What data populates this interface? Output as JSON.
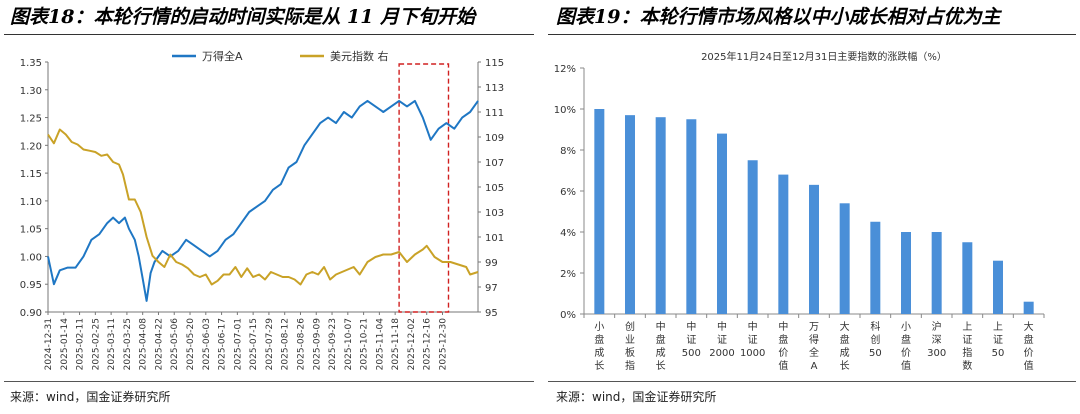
{
  "left": {
    "title": "图表18：本轮行情的启动时间实际是从 11 月下旬开始",
    "source": "来源：wind，国金证券研究所",
    "chart_data": {
      "type": "line",
      "series": [
        {
          "name": "万得全A",
          "axis": "left",
          "color": "#1f77c4",
          "points": [
            [
              0,
              1.0
            ],
            [
              3,
              0.95
            ],
            [
              6,
              0.975
            ],
            [
              10,
              0.98
            ],
            [
              14,
              0.98
            ],
            [
              18,
              1.0
            ],
            [
              22,
              1.03
            ],
            [
              26,
              1.04
            ],
            [
              30,
              1.06
            ],
            [
              33,
              1.07
            ],
            [
              36,
              1.06
            ],
            [
              39,
              1.07
            ],
            [
              41,
              1.05
            ],
            [
              44,
              1.03
            ],
            [
              46,
              1.0
            ],
            [
              48,
              0.96
            ],
            [
              50,
              0.92
            ],
            [
              52,
              0.97
            ],
            [
              54,
              0.99
            ],
            [
              58,
              1.01
            ],
            [
              62,
              1.0
            ],
            [
              66,
              1.01
            ],
            [
              70,
              1.03
            ],
            [
              74,
              1.02
            ],
            [
              78,
              1.01
            ],
            [
              82,
              1.0
            ],
            [
              86,
              1.01
            ],
            [
              90,
              1.03
            ],
            [
              94,
              1.04
            ],
            [
              98,
              1.06
            ],
            [
              102,
              1.08
            ],
            [
              106,
              1.09
            ],
            [
              110,
              1.1
            ],
            [
              114,
              1.12
            ],
            [
              118,
              1.13
            ],
            [
              122,
              1.16
            ],
            [
              126,
              1.17
            ],
            [
              130,
              1.2
            ],
            [
              134,
              1.22
            ],
            [
              138,
              1.24
            ],
            [
              142,
              1.25
            ],
            [
              146,
              1.24
            ],
            [
              150,
              1.26
            ],
            [
              154,
              1.25
            ],
            [
              158,
              1.27
            ],
            [
              162,
              1.28
            ],
            [
              166,
              1.27
            ],
            [
              170,
              1.26
            ],
            [
              174,
              1.27
            ],
            [
              178,
              1.28
            ],
            [
              182,
              1.27
            ],
            [
              186,
              1.28
            ],
            [
              190,
              1.25
            ],
            [
              194,
              1.21
            ],
            [
              198,
              1.23
            ],
            [
              202,
              1.24
            ],
            [
              206,
              1.23
            ],
            [
              210,
              1.25
            ],
            [
              214,
              1.26
            ],
            [
              218,
              1.28
            ]
          ]
        },
        {
          "name": "美元指数 右",
          "axis": "right",
          "color": "#c9a227",
          "points": [
            [
              0,
              109.2
            ],
            [
              3,
              108.5
            ],
            [
              6,
              109.6
            ],
            [
              9,
              109.2
            ],
            [
              12,
              108.6
            ],
            [
              15,
              108.4
            ],
            [
              18,
              108.0
            ],
            [
              21,
              107.9
            ],
            [
              24,
              107.8
            ],
            [
              27,
              107.5
            ],
            [
              30,
              107.6
            ],
            [
              33,
              107.0
            ],
            [
              36,
              106.8
            ],
            [
              38,
              106.0
            ],
            [
              41,
              104.0
            ],
            [
              44,
              104.0
            ],
            [
              47,
              103.0
            ],
            [
              50,
              101.0
            ],
            [
              53,
              99.5
            ],
            [
              56,
              99.0
            ],
            [
              59,
              98.6
            ],
            [
              62,
              99.6
            ],
            [
              65,
              99.0
            ],
            [
              68,
              98.8
            ],
            [
              71,
              98.5
            ],
            [
              74,
              98.0
            ],
            [
              77,
              97.8
            ],
            [
              80,
              98.0
            ],
            [
              83,
              97.2
            ],
            [
              86,
              97.5
            ],
            [
              89,
              98.0
            ],
            [
              92,
              98.0
            ],
            [
              95,
              98.6
            ],
            [
              98,
              97.8
            ],
            [
              101,
              98.5
            ],
            [
              104,
              97.8
            ],
            [
              107,
              98.0
            ],
            [
              110,
              97.6
            ],
            [
              113,
              98.2
            ],
            [
              116,
              98.0
            ],
            [
              119,
              97.8
            ],
            [
              122,
              97.8
            ],
            [
              125,
              97.6
            ],
            [
              128,
              97.2
            ],
            [
              131,
              98.0
            ],
            [
              134,
              98.2
            ],
            [
              137,
              98.0
            ],
            [
              140,
              98.6
            ],
            [
              143,
              97.6
            ],
            [
              146,
              98.0
            ],
            [
              149,
              98.2
            ],
            [
              152,
              98.4
            ],
            [
              155,
              98.6
            ],
            [
              158,
              98.0
            ],
            [
              162,
              99.0
            ],
            [
              166,
              99.4
            ],
            [
              170,
              99.6
            ],
            [
              174,
              99.6
            ],
            [
              178,
              99.8
            ],
            [
              182,
              99.0
            ],
            [
              186,
              99.6
            ],
            [
              190,
              100.0
            ],
            [
              192,
              100.3
            ],
            [
              196,
              99.4
            ],
            [
              200,
              99.0
            ],
            [
              204,
              99.0
            ],
            [
              208,
              98.8
            ],
            [
              212,
              98.6
            ],
            [
              214,
              98.0
            ],
            [
              218,
              98.2
            ]
          ]
        }
      ],
      "x_range": [
        0,
        218
      ],
      "x_ticks": [
        [
          0,
          "2024-12-31"
        ],
        [
          8,
          "2025-01-14"
        ],
        [
          16,
          "2025-02-11"
        ],
        [
          24,
          "2025-02-25"
        ],
        [
          32,
          "2025-03-11"
        ],
        [
          40,
          "2025-03-25"
        ],
        [
          48,
          "2025-04-08"
        ],
        [
          56,
          "2025-04-22"
        ],
        [
          64,
          "2025-05-06"
        ],
        [
          72,
          "2025-05-20"
        ],
        [
          80,
          "2025-06-03"
        ],
        [
          88,
          "2025-06-17"
        ],
        [
          96,
          "2025-07-01"
        ],
        [
          104,
          "2025-07-15"
        ],
        [
          112,
          "2025-07-29"
        ],
        [
          120,
          "2025-08-12"
        ],
        [
          128,
          "2025-08-26"
        ],
        [
          136,
          "2025-09-09"
        ],
        [
          144,
          "2025-09-23"
        ],
        [
          152,
          "2025-10-07"
        ],
        [
          160,
          "2025-10-21"
        ],
        [
          168,
          "2025-11-04"
        ],
        [
          176,
          "2025-11-18"
        ],
        [
          184,
          "2025-12-02"
        ],
        [
          192,
          "2025-12-16"
        ],
        [
          200,
          "2025-12-30"
        ]
      ],
      "ylim_left": [
        0.9,
        1.35
      ],
      "yticks_left": [
        "0.90",
        "0.95",
        "1.00",
        "1.05",
        "1.10",
        "1.15",
        "1.20",
        "1.25",
        "1.30",
        "1.35"
      ],
      "ylim_right": [
        95,
        115
      ],
      "yticks_right": [
        "95",
        "97",
        "99",
        "101",
        "103",
        "105",
        "107",
        "109",
        "111",
        "113",
        "115"
      ],
      "highlight_x_range": [
        178,
        200
      ],
      "legend": [
        "万得全A",
        "美元指数 右"
      ]
    }
  },
  "right": {
    "title": "图表19：本轮行情市场风格以中小成长相对占优为主",
    "source": "来源：wind，国金证券研究所",
    "chart_data": {
      "type": "bar",
      "title": "2025年11月24日至12月31日主要指数的涨跌幅（%）",
      "categories": [
        "小盘成长",
        "创业板指",
        "中盘成长",
        "中证500",
        "中证2000",
        "中证1000",
        "中盘价值",
        "万得全A",
        "大盘成长",
        "科创50",
        "小盘价值",
        "沪深300",
        "上证指数",
        "上证50",
        "大盘价值"
      ],
      "values": [
        10.0,
        9.7,
        9.6,
        9.5,
        8.8,
        7.5,
        6.8,
        6.3,
        5.4,
        4.5,
        4.0,
        4.0,
        3.5,
        2.6,
        0.6
      ],
      "ylim": [
        0,
        12
      ],
      "yticks": [
        "0%",
        "2%",
        "4%",
        "6%",
        "8%",
        "10%",
        "12%"
      ],
      "color": "#4a8fd8"
    }
  }
}
